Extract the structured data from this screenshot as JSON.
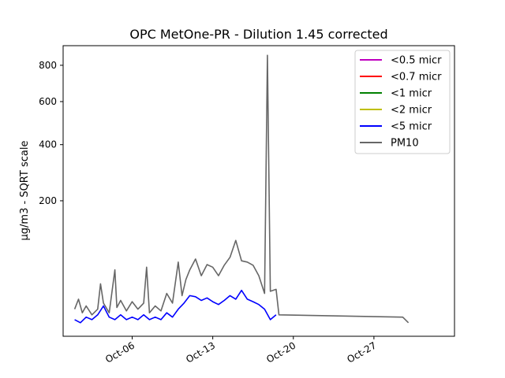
{
  "chart_data": {
    "type": "line",
    "title": "OPC MetOne-PR - Dilution 1.45 corrected",
    "xlabel": "",
    "ylabel": "µg/m3 - SQRT scale",
    "y_scale": "sqrt",
    "ylim": [
      0,
      920
    ],
    "y_ticks": [
      200,
      400,
      600,
      800
    ],
    "x_type": "date",
    "xlim": [
      "2023-09-30",
      "2023-11-03"
    ],
    "x_ticks": [
      {
        "date": "2023-10-06",
        "label": "Oct-06"
      },
      {
        "date": "2023-10-13",
        "label": "Oct-13"
      },
      {
        "date": "2023-10-20",
        "label": "Oct-20"
      },
      {
        "date": "2023-10-27",
        "label": "Oct-27"
      }
    ],
    "legend_position": "top-right",
    "series": [
      {
        "name": "<0.5 micr",
        "color": "#bf00bf",
        "points": []
      },
      {
        "name": "<0.7 micr",
        "color": "#ff0000",
        "points": []
      },
      {
        "name": "<1 micr",
        "color": "#008000",
        "points": []
      },
      {
        "name": "<2 micr",
        "color": "#bfbf00",
        "points": []
      },
      {
        "name": "<5 micr",
        "color": "#0000ff",
        "points": [
          [
            "2023-10-01",
            3
          ],
          [
            "2023-10-01T12:00",
            2
          ],
          [
            "2023-10-02",
            4
          ],
          [
            "2023-10-02T12:00",
            3
          ],
          [
            "2023-10-03",
            5
          ],
          [
            "2023-10-03T12:00",
            10
          ],
          [
            "2023-10-04",
            4
          ],
          [
            "2023-10-04T12:00",
            3
          ],
          [
            "2023-10-05",
            5
          ],
          [
            "2023-10-05T12:00",
            3
          ],
          [
            "2023-10-06",
            4
          ],
          [
            "2023-10-06T12:00",
            3
          ],
          [
            "2023-10-07",
            5
          ],
          [
            "2023-10-07T12:00",
            3
          ],
          [
            "2023-10-08",
            4
          ],
          [
            "2023-10-08T12:00",
            3
          ],
          [
            "2023-10-09",
            6
          ],
          [
            "2023-10-09T12:00",
            4
          ],
          [
            "2023-10-10",
            8
          ],
          [
            "2023-10-10T12:00",
            12
          ],
          [
            "2023-10-11",
            18
          ],
          [
            "2023-10-11T12:00",
            17
          ],
          [
            "2023-10-12",
            14
          ],
          [
            "2023-10-12T12:00",
            16
          ],
          [
            "2023-10-13",
            13
          ],
          [
            "2023-10-13T12:00",
            11
          ],
          [
            "2023-10-14",
            14
          ],
          [
            "2023-10-14T12:00",
            18
          ],
          [
            "2023-10-15",
            15
          ],
          [
            "2023-10-15T12:00",
            23
          ],
          [
            "2023-10-16",
            15
          ],
          [
            "2023-10-16T12:00",
            13
          ],
          [
            "2023-10-17",
            11
          ],
          [
            "2023-10-17T12:00",
            8
          ],
          [
            "2023-10-18",
            3
          ],
          [
            "2023-10-18T12:00",
            5
          ]
        ]
      },
      {
        "name": "PM10",
        "color": "#666666",
        "points": [
          [
            "2023-10-01",
            8
          ],
          [
            "2023-10-01T08:00",
            15
          ],
          [
            "2023-10-01T16:00",
            6
          ],
          [
            "2023-10-02",
            10
          ],
          [
            "2023-10-02T12:00",
            5
          ],
          [
            "2023-10-03",
            8
          ],
          [
            "2023-10-03T06:00",
            30
          ],
          [
            "2023-10-03T12:00",
            12
          ],
          [
            "2023-10-04",
            6
          ],
          [
            "2023-10-04T12:00",
            48
          ],
          [
            "2023-10-04T16:00",
            9
          ],
          [
            "2023-10-05",
            14
          ],
          [
            "2023-10-05T12:00",
            7
          ],
          [
            "2023-10-06",
            13
          ],
          [
            "2023-10-06T12:00",
            8
          ],
          [
            "2023-10-07",
            12
          ],
          [
            "2023-10-07T06:00",
            52
          ],
          [
            "2023-10-07T12:00",
            6
          ],
          [
            "2023-10-08",
            10
          ],
          [
            "2023-10-08T12:00",
            7
          ],
          [
            "2023-10-09",
            20
          ],
          [
            "2023-10-09T12:00",
            12
          ],
          [
            "2023-10-10",
            60
          ],
          [
            "2023-10-10T08:00",
            18
          ],
          [
            "2023-10-10T16:00",
            35
          ],
          [
            "2023-10-11",
            48
          ],
          [
            "2023-10-11T12:00",
            65
          ],
          [
            "2023-10-12",
            40
          ],
          [
            "2023-10-12T12:00",
            56
          ],
          [
            "2023-10-13",
            52
          ],
          [
            "2023-10-13T12:00",
            40
          ],
          [
            "2023-10-14",
            55
          ],
          [
            "2023-10-14T12:00",
            68
          ],
          [
            "2023-10-15",
            100
          ],
          [
            "2023-10-15T12:00",
            62
          ],
          [
            "2023-10-16",
            60
          ],
          [
            "2023-10-16T12:00",
            55
          ],
          [
            "2023-10-17",
            40
          ],
          [
            "2023-10-17T12:00",
            20
          ],
          [
            "2023-10-17T18:00",
            860
          ],
          [
            "2023-10-18",
            22
          ],
          [
            "2023-10-18T12:00",
            24
          ],
          [
            "2023-10-18T18:00",
            5
          ],
          [
            "2023-10-29T12:00",
            4
          ],
          [
            "2023-10-30",
            2
          ]
        ]
      }
    ]
  }
}
